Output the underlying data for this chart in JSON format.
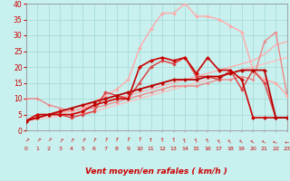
{
  "xlabel": "Vent moyen/en rafales ( km/h )",
  "xlim": [
    0,
    23
  ],
  "ylim": [
    0,
    40
  ],
  "yticks": [
    0,
    5,
    10,
    15,
    20,
    25,
    30,
    35,
    40
  ],
  "xticks": [
    0,
    1,
    2,
    3,
    4,
    5,
    6,
    7,
    8,
    9,
    10,
    11,
    12,
    13,
    14,
    15,
    16,
    17,
    18,
    19,
    20,
    21,
    22,
    23
  ],
  "bg_color": "#c8f0ee",
  "grid_color": "#a0d8d4",
  "label_color": "#cc0000",
  "lines": [
    {
      "comment": "light pink, nearly straight diagonal, no markers",
      "x": [
        0,
        1,
        2,
        3,
        4,
        5,
        6,
        7,
        8,
        9,
        10,
        11,
        12,
        13,
        14,
        15,
        16,
        17,
        18,
        19,
        20,
        21,
        22,
        23
      ],
      "y": [
        3,
        3.5,
        4,
        4.5,
        5,
        5.5,
        6,
        7,
        8,
        9,
        10,
        11,
        12,
        13,
        14,
        15,
        16,
        17,
        18,
        19,
        20,
        21,
        22,
        23
      ],
      "color": "#ffbbbb",
      "lw": 0.9,
      "marker": null
    },
    {
      "comment": "light pink diagonal slightly steeper, no markers",
      "x": [
        0,
        1,
        2,
        3,
        4,
        5,
        6,
        7,
        8,
        9,
        10,
        11,
        12,
        13,
        14,
        15,
        16,
        17,
        18,
        19,
        20,
        21,
        22,
        23
      ],
      "y": [
        3,
        4,
        5,
        5.5,
        6,
        7,
        8,
        9,
        10,
        11,
        12,
        13,
        14,
        15,
        16,
        17,
        18,
        19,
        20,
        21,
        22,
        24,
        27,
        28
      ],
      "color": "#ffaaaa",
      "lw": 0.9,
      "marker": null
    },
    {
      "comment": "light pink with markers - starts at 10, mostly flat then rises end",
      "x": [
        0,
        1,
        2,
        3,
        4,
        5,
        6,
        7,
        8,
        9,
        10,
        11,
        12,
        13,
        14,
        15,
        16,
        17,
        18,
        19,
        20,
        21,
        22,
        23
      ],
      "y": [
        10,
        10,
        8,
        7,
        6,
        7,
        7,
        8,
        9,
        10,
        11,
        12,
        13,
        14,
        14,
        14,
        15,
        16,
        16,
        17,
        16,
        28,
        31,
        11
      ],
      "color": "#ee8888",
      "lw": 1.0,
      "marker": "D",
      "ms": 1.8
    },
    {
      "comment": "light pink large curve peaking at 40 at x=14",
      "x": [
        0,
        1,
        2,
        3,
        4,
        5,
        6,
        7,
        8,
        9,
        10,
        11,
        12,
        13,
        14,
        15,
        16,
        17,
        18,
        19,
        20,
        21,
        22,
        23
      ],
      "y": [
        3,
        4,
        5,
        6,
        6,
        7,
        9,
        11,
        13,
        16,
        26,
        32,
        37,
        37,
        40,
        36,
        36,
        35,
        33,
        31,
        19,
        16,
        15,
        11
      ],
      "color": "#ffaaaa",
      "lw": 1.0,
      "marker": "D",
      "ms": 2.0
    },
    {
      "comment": "medium red line with markers, rises to ~23 then drops",
      "x": [
        0,
        1,
        2,
        3,
        4,
        5,
        6,
        7,
        8,
        9,
        10,
        11,
        12,
        13,
        14,
        15,
        16,
        17,
        18,
        19,
        20,
        21,
        22,
        23
      ],
      "y": [
        3,
        4,
        5,
        5,
        4,
        5,
        6,
        12,
        11,
        10,
        15,
        20,
        22,
        21,
        23,
        17,
        17,
        16,
        19,
        13,
        19,
        15,
        4,
        4
      ],
      "color": "#dd4444",
      "lw": 1.1,
      "marker": "D",
      "ms": 2.0
    },
    {
      "comment": "dark red line with markers - jagged, peaks ~23",
      "x": [
        0,
        1,
        2,
        3,
        4,
        5,
        6,
        7,
        8,
        9,
        10,
        11,
        12,
        13,
        14,
        15,
        16,
        17,
        18,
        19,
        20,
        21,
        22,
        23
      ],
      "y": [
        3,
        5,
        5,
        5,
        5,
        6,
        8,
        9,
        10,
        10,
        20,
        22,
        23,
        22,
        23,
        18,
        23,
        19,
        19,
        16,
        4,
        4,
        4,
        4
      ],
      "color": "#cc0000",
      "lw": 1.2,
      "marker": "D",
      "ms": 2.2
    },
    {
      "comment": "dark red smooth line rising to 19 at x=20, then drops",
      "x": [
        0,
        1,
        2,
        3,
        4,
        5,
        6,
        7,
        8,
        9,
        10,
        11,
        12,
        13,
        14,
        15,
        16,
        17,
        18,
        19,
        20,
        21,
        22,
        23
      ],
      "y": [
        3,
        4,
        5,
        6,
        7,
        8,
        9,
        10,
        11,
        12,
        13,
        14,
        15,
        16,
        16,
        16,
        17,
        17,
        18,
        19,
        19,
        19,
        4,
        4
      ],
      "color": "#bb0000",
      "lw": 1.3,
      "marker": "D",
      "ms": 2.2
    }
  ],
  "arrow_angles": [
    -45,
    -42,
    -38,
    -34,
    -30,
    -26,
    -22,
    -18,
    -13,
    -8,
    -3,
    2,
    7,
    12,
    17,
    22,
    27,
    32,
    37,
    42,
    50,
    58,
    70,
    90
  ]
}
